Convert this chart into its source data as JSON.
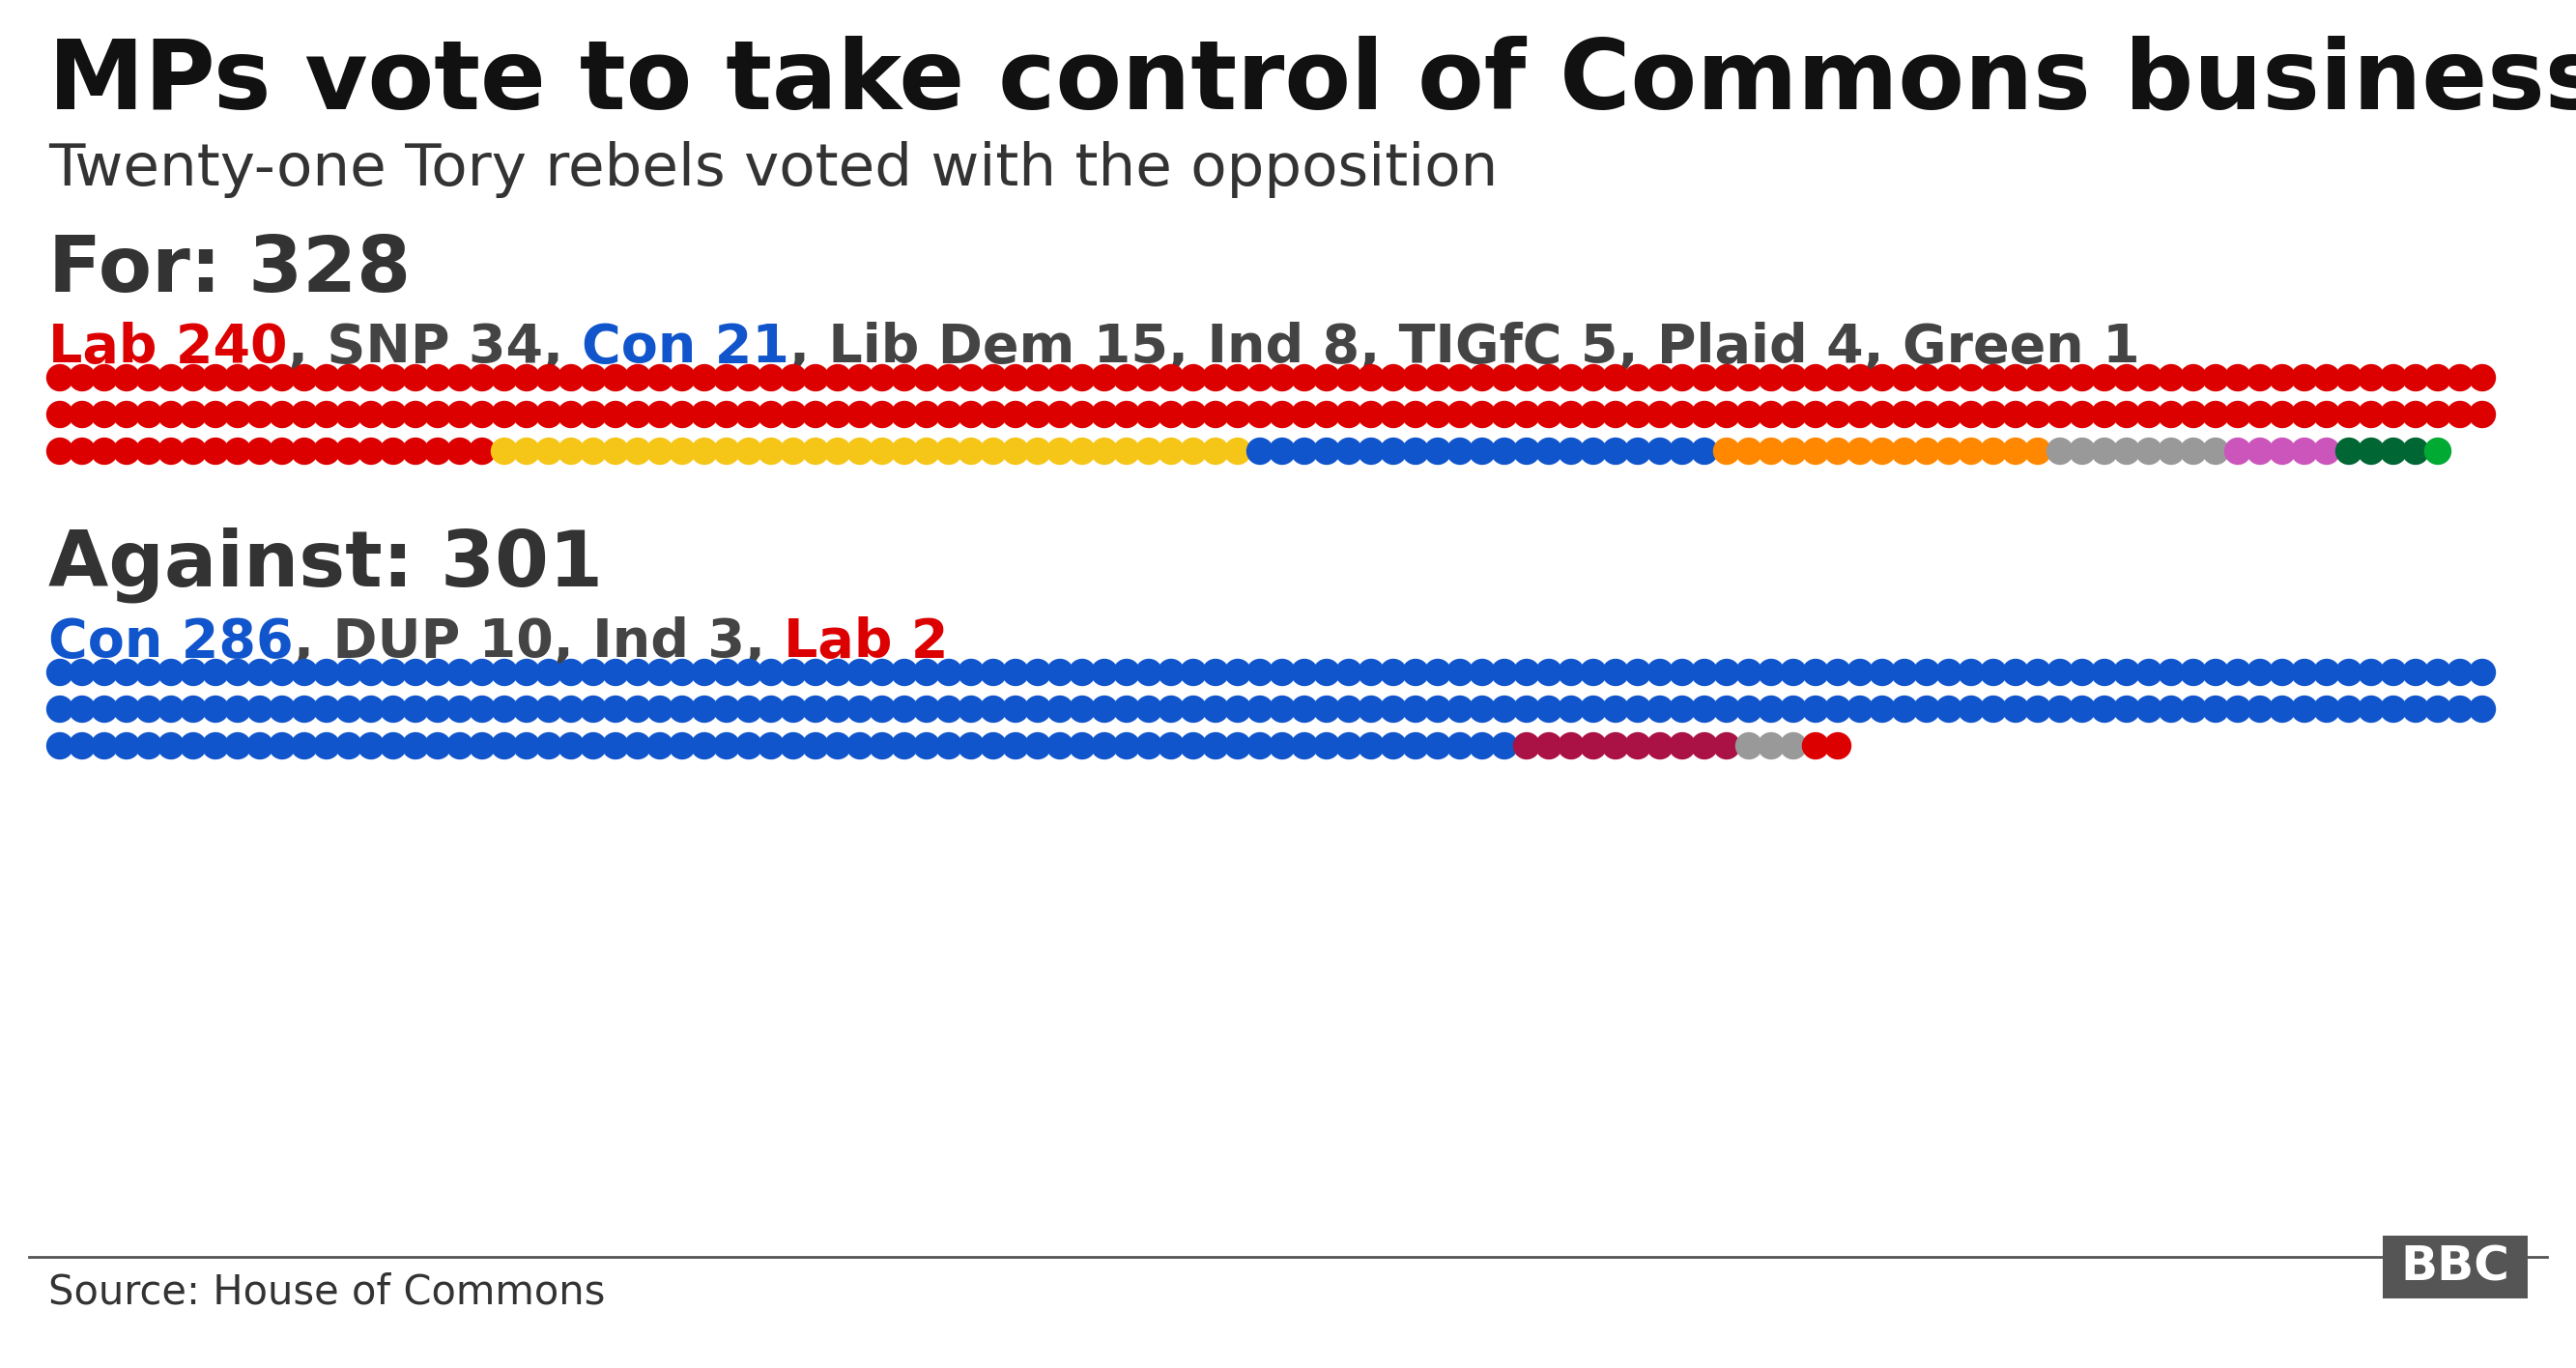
{
  "title": "MPs vote to take control of Commons business",
  "subtitle": "Twenty-one Tory rebels voted with the opposition",
  "background_color": "#ffffff",
  "for_label": "For: 328",
  "for_breakdown": [
    {
      "party": "Lab",
      "count": 240
    },
    {
      "party": "SNP",
      "count": 34
    },
    {
      "party": "Con",
      "count": 21
    },
    {
      "party": "Lib Dem",
      "count": 15
    },
    {
      "party": "Ind",
      "count": 8
    },
    {
      "party": "TIGfC",
      "count": 5
    },
    {
      "party": "Plaid",
      "count": 4
    },
    {
      "party": "Green",
      "count": 1
    }
  ],
  "for_dot_colors": {
    "Lab": "#dd0000",
    "SNP": "#f5c518",
    "Con": "#1155cc",
    "Lib Dem": "#ff8800",
    "Ind": "#999999",
    "TIGfC": "#cc55bb",
    "Plaid": "#006633",
    "Green": "#00aa33"
  },
  "against_label": "Against: 301",
  "against_breakdown": [
    {
      "party": "Con",
      "count": 286
    },
    {
      "party": "DUP",
      "count": 10
    },
    {
      "party": "Ind",
      "count": 3
    },
    {
      "party": "Lab",
      "count": 2
    }
  ],
  "against_dot_colors": {
    "Con": "#1155cc",
    "DUP": "#aa1144",
    "Ind": "#999999",
    "Lab": "#dd0000"
  },
  "for_label_parts": [
    {
      "text": "Lab 240",
      "color": "#dd0000"
    },
    {
      "text": ", SNP 34, ",
      "color": "#444444"
    },
    {
      "text": "Con 21",
      "color": "#1155cc"
    },
    {
      "text": ", Lib Dem 15, Ind 8, TIGfC 5, Plaid 4, Green 1",
      "color": "#444444"
    }
  ],
  "against_label_parts": [
    {
      "text": "Con 286",
      "color": "#1155cc"
    },
    {
      "text": ", DUP 10, Ind 3, ",
      "color": "#444444"
    },
    {
      "text": "Lab 2",
      "color": "#dd0000"
    }
  ],
  "source_text": "Source: House of Commons",
  "dots_per_row": 110
}
